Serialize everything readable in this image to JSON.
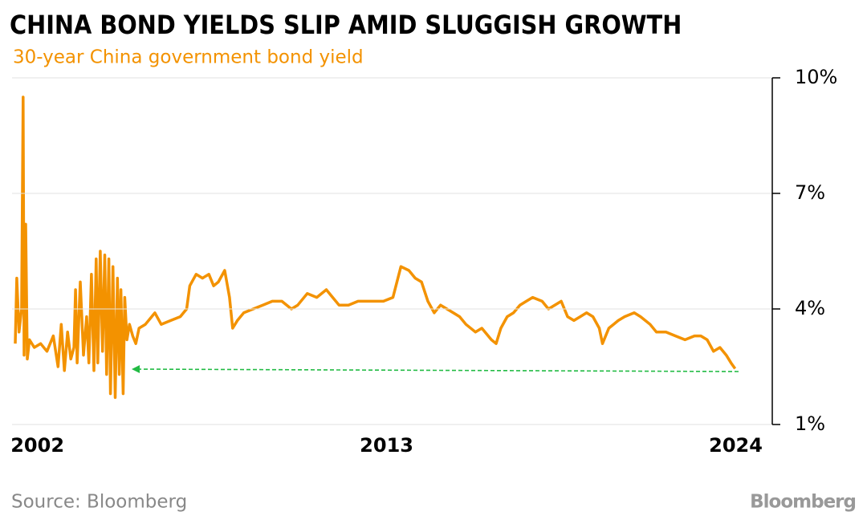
{
  "chart_data": {
    "type": "line",
    "title": "CHINA BOND YIELDS SLIP AMID SLUGGISH GROWTH",
    "subtitle": "30-year China government bond yield",
    "source": "Source: Bloomberg",
    "logo": "Bloomberg",
    "xlim": [
      2001.2,
      2025.15
    ],
    "xticks": [
      2002,
      2013,
      2024
    ],
    "ylim": [
      1,
      10
    ],
    "yticks": [
      {
        "value": 1,
        "label": "1%"
      },
      {
        "value": 4,
        "label": "4%"
      },
      {
        "value": 7,
        "label": "7%"
      },
      {
        "value": 10,
        "label": "10%"
      }
    ],
    "grid": true,
    "series": [
      {
        "name": "30-year China government bond yield",
        "color": "#f39200",
        "x": [
          2001.3,
          2001.35,
          2001.42,
          2001.5,
          2001.55,
          2001.58,
          2001.63,
          2001.68,
          2001.75,
          2001.9,
          2002.1,
          2002.3,
          2002.5,
          2002.65,
          2002.75,
          2002.85,
          2002.95,
          2003.05,
          2003.15,
          2003.2,
          2003.25,
          2003.35,
          2003.45,
          2003.55,
          2003.62,
          2003.7,
          2003.78,
          2003.85,
          2003.9,
          2003.98,
          2004.05,
          2004.12,
          2004.18,
          2004.25,
          2004.3,
          2004.38,
          2004.45,
          2004.52,
          2004.58,
          2004.63,
          2004.7,
          2004.75,
          2004.82,
          2004.9,
          2005.0,
          2005.1,
          2005.2,
          2005.4,
          2005.6,
          2005.7,
          2005.9,
          2006.2,
          2006.5,
          2006.7,
          2006.8,
          2007.0,
          2007.2,
          2007.4,
          2007.55,
          2007.7,
          2007.9,
          2008.05,
          2008.15,
          2008.3,
          2008.5,
          2008.8,
          2009.1,
          2009.4,
          2009.7,
          2010.0,
          2010.2,
          2010.5,
          2010.8,
          2011.1,
          2011.3,
          2011.5,
          2011.8,
          2012.1,
          2012.5,
          2012.9,
          2013.2,
          2013.45,
          2013.7,
          2013.9,
          2014.1,
          2014.3,
          2014.5,
          2014.7,
          2014.9,
          2015.1,
          2015.3,
          2015.5,
          2015.8,
          2016.0,
          2016.3,
          2016.45,
          2016.6,
          2016.8,
          2017.0,
          2017.2,
          2017.4,
          2017.6,
          2017.9,
          2018.1,
          2018.3,
          2018.5,
          2018.7,
          2018.9,
          2019.1,
          2019.3,
          2019.5,
          2019.7,
          2019.8,
          2020.0,
          2020.3,
          2020.5,
          2020.8,
          2021.0,
          2021.3,
          2021.5,
          2021.8,
          2022.1,
          2022.4,
          2022.7,
          2022.9,
          2023.1,
          2023.3,
          2023.5,
          2023.7,
          2023.85,
          2023.98
        ],
        "values": [
          3.1,
          4.8,
          3.4,
          4.0,
          9.5,
          2.8,
          6.2,
          2.7,
          3.2,
          3.0,
          3.1,
          2.9,
          3.3,
          2.5,
          3.6,
          2.4,
          3.4,
          2.7,
          3.0,
          4.5,
          2.6,
          4.7,
          2.8,
          3.8,
          2.6,
          4.9,
          2.4,
          5.3,
          2.6,
          5.5,
          2.9,
          5.4,
          2.3,
          5.3,
          1.8,
          5.1,
          1.7,
          4.8,
          2.3,
          4.5,
          1.8,
          4.3,
          3.2,
          3.6,
          3.3,
          3.1,
          3.5,
          3.6,
          3.8,
          3.9,
          3.6,
          3.7,
          3.8,
          4.0,
          4.6,
          4.9,
          4.8,
          4.9,
          4.6,
          4.7,
          5.0,
          4.3,
          3.5,
          3.7,
          3.9,
          4.0,
          4.1,
          4.2,
          4.2,
          4.0,
          4.1,
          4.4,
          4.3,
          4.5,
          4.3,
          4.1,
          4.1,
          4.2,
          4.2,
          4.2,
          4.3,
          5.1,
          5.0,
          4.8,
          4.7,
          4.2,
          3.9,
          4.1,
          4.0,
          3.9,
          3.8,
          3.6,
          3.4,
          3.5,
          3.2,
          3.1,
          3.5,
          3.8,
          3.9,
          4.1,
          4.2,
          4.3,
          4.2,
          4.0,
          4.1,
          4.2,
          3.8,
          3.7,
          3.8,
          3.9,
          3.8,
          3.5,
          3.1,
          3.5,
          3.7,
          3.8,
          3.9,
          3.8,
          3.6,
          3.4,
          3.4,
          3.3,
          3.2,
          3.3,
          3.3,
          3.2,
          2.9,
          3.0,
          2.8,
          2.6,
          2.45
        ]
      }
    ]
  }
}
